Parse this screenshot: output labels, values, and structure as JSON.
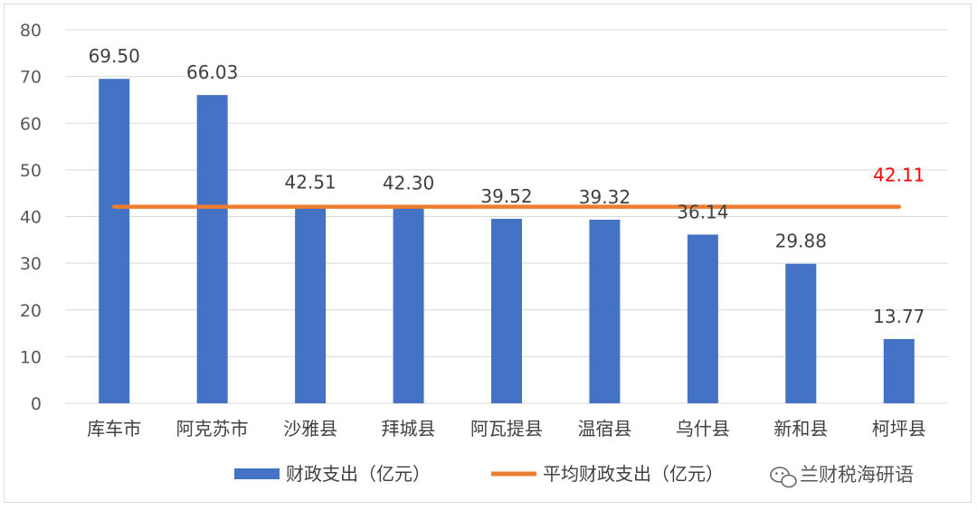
{
  "chart_data": {
    "type": "bar",
    "categories": [
      "库车市",
      "阿克苏市",
      "沙雅县",
      "拜城县",
      "阿瓦提县",
      "温宿县",
      "乌什县",
      "新和县",
      "柯坪县"
    ],
    "series": [
      {
        "name": "财政支出（亿元）",
        "type": "bar",
        "color": "#4472c4",
        "values": [
          69.5,
          66.03,
          42.51,
          42.3,
          39.52,
          39.32,
          36.14,
          29.88,
          13.77
        ],
        "labels": [
          "69.50",
          "66.03",
          "42.51",
          "42.30",
          "39.52",
          "39.32",
          "36.14",
          "29.88",
          "13.77"
        ]
      },
      {
        "name": "平均财政支出（亿元）",
        "type": "line",
        "color": "#ed7d31",
        "value": 42.11,
        "label": "42.11",
        "label_color": "#ff0000"
      }
    ],
    "ylim": [
      0,
      80
    ],
    "yticks": [
      "0",
      "10",
      "20",
      "30",
      "40",
      "50",
      "60",
      "70",
      "80"
    ],
    "grid": true,
    "legend_position": "bottom"
  },
  "watermark": {
    "icon": "wechat-icon",
    "text": "兰财税海研语"
  }
}
